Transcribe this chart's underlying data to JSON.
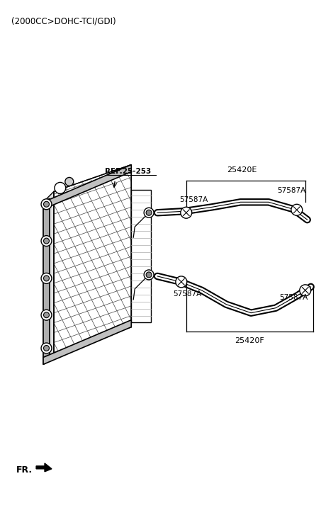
{
  "title": "(2000CC>DOHC-TCI/GDI)",
  "bg_color": "#ffffff",
  "text_color": "#000000",
  "labels": {
    "ref": "REF.25-253",
    "part1": "25420E",
    "part2": "25420F",
    "clip1": "57587A",
    "clip2": "57587A",
    "clip3": "57587A",
    "clip4": "57587A",
    "fr": "FR."
  }
}
